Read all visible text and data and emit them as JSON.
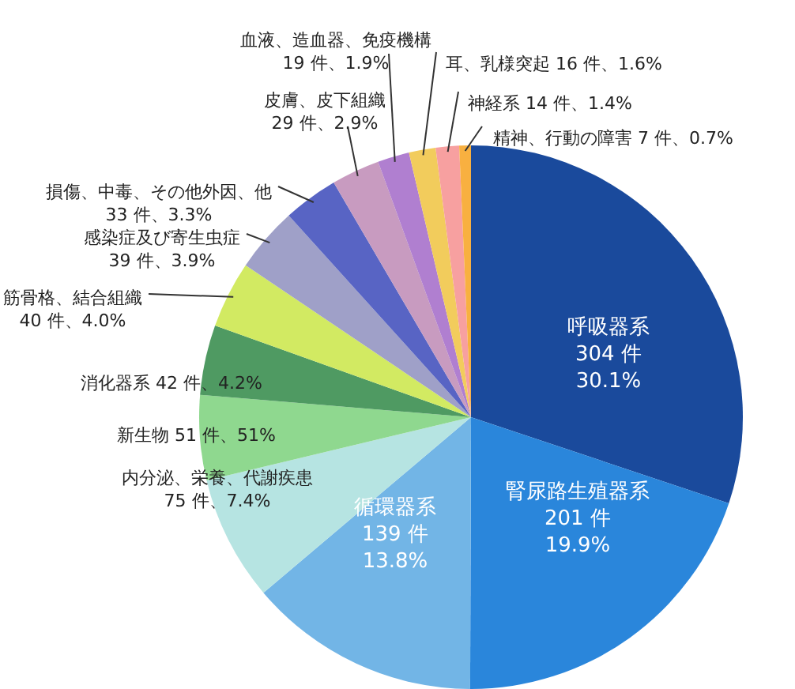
{
  "chart_data": {
    "type": "pie",
    "categories": [
      "呼吸器系",
      "腎尿路生殖器系",
      "循環器系",
      "内分泌、栄養、代謝疾患",
      "新生物",
      "消化器系",
      "筋骨格、結合組織",
      "感染症及び寄生虫症",
      "損傷、中毒、その他外因、他",
      "皮膚、皮下組織",
      "血液、造血器、免疫機構",
      "耳、乳様突起",
      "神経系",
      "精神、行動の障害"
    ],
    "values": [
      304,
      201,
      139,
      75,
      51,
      42,
      40,
      39,
      33,
      29,
      19,
      16,
      14,
      7
    ],
    "colors": [
      "#1a4a9c",
      "#2a86db",
      "#72b5e6",
      "#b6e4e2",
      "#8fd88f",
      "#4f9a62",
      "#d2ea62",
      "#9fa0c8",
      "#5864c4",
      "#c89bc0",
      "#b07fd0",
      "#f2cc5c",
      "#f7a0a0",
      "#f8b040"
    ],
    "value_labels": [
      "304 件\n30.1%",
      "201 件\n19.9%",
      "139 件\n13.8%",
      "75 件、7.4%",
      "51 件、51%",
      "42 件、4.2%",
      "40 件、4.0%",
      "39 件、3.9%",
      "33 件、3.3%",
      "29 件、2.9%",
      "19 件、1.9%",
      "16 件、1.6%",
      "14 件、1.4%",
      "7 件、0.7%"
    ]
  }
}
